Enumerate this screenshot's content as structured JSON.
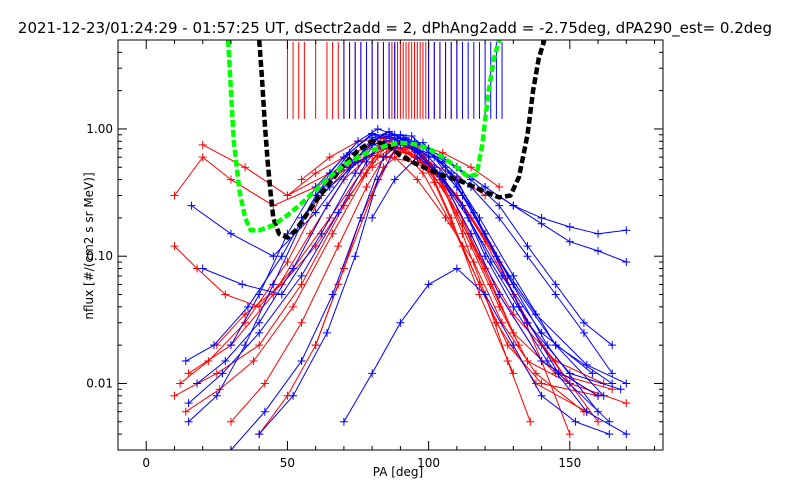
{
  "chart_data": {
    "type": "scatter",
    "title": "2021-12-23/01:24:29 - 01:57:25 UT, dSectr2add = 2, dPhAng2add = -2.75deg, dPA290_est=   0.2deg",
    "xlabel": "PA [deg]",
    "ylabel": "nflux [#/(cm2 s sr MeV)]",
    "xlim": [
      -10,
      183
    ],
    "ylim": [
      0.003,
      5.0
    ],
    "yscale": "log",
    "grid": false,
    "x_ticks": [
      {
        "value": 0,
        "label": "0"
      },
      {
        "value": 50,
        "label": "50"
      },
      {
        "value": 100,
        "label": "100"
      },
      {
        "value": 150,
        "label": "150"
      }
    ],
    "y_ticks": [
      {
        "value": 0.01,
        "label": "0.01"
      },
      {
        "value": 0.1,
        "label": "0.10"
      },
      {
        "value": 1.0,
        "label": "1.00"
      }
    ],
    "colors": {
      "red_series": "#ff0000",
      "blue_series": "#0000ff",
      "green_curve": "#00ff00",
      "black_curve": "#000000"
    },
    "green_curve": {
      "x": [
        29,
        31,
        33,
        35,
        37,
        40,
        45,
        50,
        55,
        60,
        65,
        70,
        75,
        80,
        85,
        90,
        95,
        100,
        105,
        110,
        114,
        117,
        119,
        121,
        123,
        125
      ],
      "y": [
        5.0,
        0.8,
        0.33,
        0.2,
        0.16,
        0.16,
        0.175,
        0.21,
        0.26,
        0.33,
        0.42,
        0.52,
        0.6,
        0.68,
        0.74,
        0.78,
        0.76,
        0.7,
        0.6,
        0.5,
        0.42,
        0.44,
        0.75,
        1.8,
        3.5,
        5.0
      ]
    },
    "black_curve": {
      "x": [
        40,
        41,
        42,
        43,
        44,
        45,
        47,
        50,
        53,
        56,
        60,
        65,
        70,
        75,
        80,
        85,
        90,
        95,
        100,
        105,
        110,
        115,
        120,
        125,
        129,
        132,
        135,
        137,
        139,
        141
      ],
      "y": [
        5.0,
        2.5,
        1.1,
        0.55,
        0.32,
        0.2,
        0.15,
        0.14,
        0.16,
        0.2,
        0.27,
        0.38,
        0.52,
        0.68,
        0.8,
        0.76,
        0.62,
        0.54,
        0.48,
        0.43,
        0.4,
        0.36,
        0.32,
        0.29,
        0.3,
        0.42,
        0.9,
        2.0,
        3.6,
        5.0
      ]
    },
    "red_ticks_x": [
      50,
      52,
      54,
      56,
      60,
      64,
      66,
      68,
      70,
      72,
      74,
      76,
      78,
      80,
      82,
      84,
      86,
      87,
      88,
      89,
      90,
      91,
      92,
      93,
      94,
      95,
      96,
      97,
      98,
      99,
      100,
      102,
      104,
      106,
      108,
      110
    ],
    "blue_ticks_x": [
      70,
      72,
      74,
      76,
      78,
      80,
      82,
      84,
      86,
      88,
      100,
      102,
      104,
      106,
      108,
      110,
      112,
      114,
      116,
      118,
      120,
      122,
      124,
      126
    ],
    "red_profiles": [
      {
        "x": [
          10,
          25,
          40,
          55,
          70,
          80,
          85,
          92,
          100,
          110,
          120,
          130,
          145,
          165
        ],
        "y": [
          0.008,
          0.012,
          0.02,
          0.06,
          0.25,
          0.55,
          0.8,
          0.75,
          0.5,
          0.22,
          0.08,
          0.025,
          0.012,
          0.009
        ]
      },
      {
        "x": [
          12,
          22,
          35,
          50,
          62,
          75,
          84,
          90,
          98,
          108,
          118,
          128,
          140,
          160
        ],
        "y": [
          0.01,
          0.015,
          0.03,
          0.09,
          0.3,
          0.6,
          0.85,
          0.7,
          0.45,
          0.18,
          0.06,
          0.02,
          0.01,
          0.008
        ]
      },
      {
        "x": [
          15,
          30,
          45,
          58,
          70,
          82,
          88,
          95,
          105,
          115,
          125,
          135,
          150,
          170
        ],
        "y": [
          0.012,
          0.02,
          0.05,
          0.15,
          0.4,
          0.7,
          0.75,
          0.6,
          0.35,
          0.12,
          0.04,
          0.015,
          0.01,
          0.007
        ]
      },
      {
        "x": [
          10,
          20,
          30,
          45,
          60,
          72,
          80,
          88,
          96,
          106,
          116,
          126,
          138,
          155
        ],
        "y": [
          0.3,
          0.6,
          0.4,
          0.25,
          0.35,
          0.5,
          0.62,
          0.6,
          0.4,
          0.2,
          0.09,
          0.03,
          0.012,
          0.006
        ]
      },
      {
        "x": [
          20,
          35,
          50,
          65,
          78,
          85,
          92,
          100,
          110,
          122,
          135,
          150
        ],
        "y": [
          0.75,
          0.5,
          0.3,
          0.45,
          0.6,
          0.7,
          0.65,
          0.5,
          0.3,
          0.12,
          0.03,
          0.01
        ]
      },
      {
        "x": [
          10,
          18,
          28,
          40,
          52,
          65,
          76,
          84,
          90,
          97,
          105,
          115,
          125,
          140,
          160
        ],
        "y": [
          0.12,
          0.08,
          0.05,
          0.04,
          0.08,
          0.2,
          0.45,
          0.72,
          0.8,
          0.65,
          0.4,
          0.15,
          0.05,
          0.015,
          0.008
        ]
      },
      {
        "x": [
          30,
          42,
          55,
          68,
          78,
          86,
          94,
          103,
          112,
          122,
          132
        ],
        "y": [
          0.005,
          0.01,
          0.03,
          0.12,
          0.35,
          0.7,
          0.72,
          0.45,
          0.18,
          0.06,
          0.02
        ]
      },
      {
        "x": [
          40,
          50,
          60,
          70,
          80,
          88,
          96,
          104,
          112,
          120,
          128,
          136
        ],
        "y": [
          0.004,
          0.008,
          0.02,
          0.08,
          0.3,
          0.7,
          0.75,
          0.4,
          0.15,
          0.05,
          0.015,
          0.005
        ]
      },
      {
        "x": [
          25,
          35,
          48,
          60,
          72,
          82,
          90,
          98,
          108,
          118,
          130,
          145,
          162
        ],
        "y": [
          0.02,
          0.035,
          0.06,
          0.12,
          0.3,
          0.6,
          0.78,
          0.62,
          0.3,
          0.1,
          0.035,
          0.015,
          0.01
        ]
      },
      {
        "x": [
          14,
          26,
          38,
          52,
          66,
          78,
          86,
          94,
          102,
          112,
          124,
          138,
          156
        ],
        "y": [
          0.006,
          0.009,
          0.015,
          0.04,
          0.15,
          0.45,
          0.8,
          0.7,
          0.38,
          0.12,
          0.03,
          0.01,
          0.006
        ]
      },
      {
        "x": [
          55,
          65,
          75,
          85,
          95,
          105,
          115,
          125
        ],
        "y": [
          0.4,
          0.6,
          0.8,
          0.85,
          0.78,
          0.65,
          0.5,
          0.35
        ]
      },
      {
        "x": [
          50,
          60,
          70,
          80,
          90,
          100,
          110,
          120
        ],
        "y": [
          0.3,
          0.45,
          0.6,
          0.75,
          0.7,
          0.55,
          0.42,
          0.3
        ]
      },
      {
        "x": [
          60,
          68,
          76,
          84,
          92,
          100,
          108,
          118,
          130
        ],
        "y": [
          0.02,
          0.06,
          0.2,
          0.5,
          0.7,
          0.5,
          0.2,
          0.05,
          0.012
        ]
      },
      {
        "x": [
          80,
          90,
          100,
          110,
          120,
          130,
          140,
          150,
          160
        ],
        "y": [
          0.5,
          0.7,
          0.55,
          0.3,
          0.13,
          0.05,
          0.02,
          0.01,
          0.005
        ]
      },
      {
        "x": [
          85,
          95,
          105,
          115,
          125,
          132,
          140,
          150
        ],
        "y": [
          0.6,
          0.55,
          0.4,
          0.2,
          0.09,
          0.04,
          0.015,
          0.004
        ]
      }
    ],
    "blue_profiles": [
      {
        "x": [
          15,
          25,
          35,
          45,
          55,
          65,
          75,
          82,
          88,
          95,
          105,
          115,
          125,
          140,
          160
        ],
        "y": [
          0.005,
          0.008,
          0.02,
          0.06,
          0.18,
          0.45,
          0.8,
          1.0,
          0.9,
          0.7,
          0.4,
          0.15,
          0.05,
          0.015,
          0.008
        ]
      },
      {
        "x": [
          18,
          28,
          40,
          52,
          64,
          74,
          80,
          86,
          94,
          102,
          112,
          122,
          135,
          150,
          168
        ],
        "y": [
          0.01,
          0.015,
          0.03,
          0.08,
          0.25,
          0.55,
          0.85,
          0.95,
          0.75,
          0.5,
          0.25,
          0.09,
          0.03,
          0.012,
          0.009
        ]
      },
      {
        "x": [
          14,
          24,
          36,
          48,
          60,
          72,
          80,
          88,
          96,
          104,
          114,
          126,
          140,
          158
        ],
        "y": [
          0.015,
          0.02,
          0.04,
          0.1,
          0.3,
          0.65,
          0.92,
          0.85,
          0.65,
          0.42,
          0.2,
          0.07,
          0.025,
          0.012
        ]
      },
      {
        "x": [
          16,
          30,
          45,
          60,
          72,
          80,
          86,
          92,
          100,
          110,
          120,
          130,
          145,
          165
        ],
        "y": [
          0.25,
          0.15,
          0.1,
          0.22,
          0.5,
          0.8,
          0.95,
          0.82,
          0.6,
          0.35,
          0.15,
          0.06,
          0.02,
          0.01
        ]
      },
      {
        "x": [
          20,
          34,
          48,
          62,
          74,
          82,
          90,
          98,
          108,
          118,
          130,
          145,
          162
        ],
        "y": [
          0.08,
          0.06,
          0.05,
          0.15,
          0.45,
          0.85,
          0.9,
          0.72,
          0.45,
          0.2,
          0.07,
          0.02,
          0.008
        ]
      },
      {
        "x": [
          30,
          42,
          55,
          66,
          76,
          84,
          92,
          100,
          110,
          120,
          132,
          146,
          164
        ],
        "y": [
          0.003,
          0.006,
          0.015,
          0.05,
          0.2,
          0.6,
          0.85,
          0.7,
          0.4,
          0.15,
          0.04,
          0.012,
          0.005
        ]
      },
      {
        "x": [
          40,
          52,
          64,
          74,
          82,
          90,
          98,
          106,
          116,
          128,
          142,
          160
        ],
        "y": [
          0.004,
          0.008,
          0.025,
          0.1,
          0.4,
          0.8,
          0.78,
          0.5,
          0.22,
          0.07,
          0.02,
          0.006
        ]
      },
      {
        "x": [
          15,
          27,
          40,
          55,
          68,
          78,
          86,
          94,
          102,
          112,
          124,
          138,
          156,
          170
        ],
        "y": [
          0.007,
          0.012,
          0.025,
          0.07,
          0.22,
          0.55,
          0.9,
          0.88,
          0.6,
          0.3,
          0.1,
          0.035,
          0.014,
          0.01
        ]
      },
      {
        "x": [
          60,
          70,
          80,
          90,
          100,
          110,
          120,
          130,
          140,
          150,
          160,
          170
        ],
        "y": [
          0.3,
          0.5,
          0.75,
          0.85,
          0.7,
          0.5,
          0.35,
          0.25,
          0.18,
          0.13,
          0.11,
          0.09
        ]
      },
      {
        "x": [
          55,
          65,
          75,
          85,
          95,
          105,
          115,
          125,
          135,
          145,
          155,
          165
        ],
        "y": [
          0.2,
          0.35,
          0.55,
          0.75,
          0.8,
          0.6,
          0.4,
          0.25,
          0.12,
          0.06,
          0.03,
          0.02
        ]
      },
      {
        "x": [
          90,
          100,
          110,
          120,
          130,
          140,
          150,
          160,
          170
        ],
        "y": [
          0.75,
          0.65,
          0.5,
          0.35,
          0.25,
          0.2,
          0.17,
          0.15,
          0.16
        ]
      },
      {
        "x": [
          95,
          105,
          115,
          125,
          135,
          145,
          155,
          165
        ],
        "y": [
          0.7,
          0.55,
          0.35,
          0.2,
          0.1,
          0.05,
          0.025,
          0.012
        ]
      },
      {
        "x": [
          30,
          40,
          50,
          60,
          70,
          80,
          90
        ],
        "y": [
          0.02,
          0.05,
          0.15,
          0.35,
          0.6,
          0.9,
          0.8
        ]
      },
      {
        "x": [
          80,
          88,
          96,
          104,
          112,
          120,
          130,
          142,
          156,
          170
        ],
        "y": [
          0.2,
          0.4,
          0.6,
          0.45,
          0.25,
          0.1,
          0.04,
          0.015,
          0.006,
          0.004
        ]
      },
      {
        "x": [
          70,
          80,
          90,
          100,
          110,
          120,
          130,
          140,
          152,
          164
        ],
        "y": [
          0.005,
          0.012,
          0.03,
          0.06,
          0.08,
          0.05,
          0.02,
          0.008,
          0.005,
          0.004
        ]
      }
    ]
  }
}
